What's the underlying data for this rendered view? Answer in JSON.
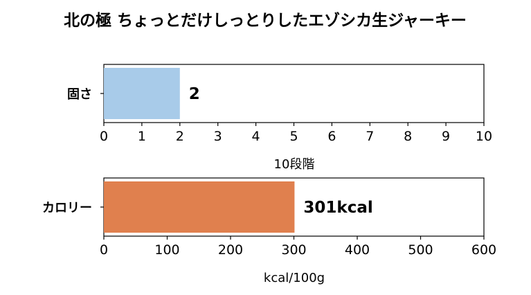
{
  "title": "北の極 ちょっとだけしっとりしたエゾシカ生ジャーキー",
  "chart_data": [
    {
      "type": "bar",
      "orientation": "horizontal",
      "categories": [
        "固さ"
      ],
      "values": [
        2
      ],
      "data_label": "2",
      "xlabel": "10段階",
      "xlim": [
        0,
        10
      ],
      "xticks": [
        "0",
        "1",
        "2",
        "3",
        "4",
        "5",
        "6",
        "7",
        "8",
        "9",
        "10"
      ],
      "color": "#a8cbe9"
    },
    {
      "type": "bar",
      "orientation": "horizontal",
      "categories": [
        "カロリー"
      ],
      "values": [
        301
      ],
      "data_label": "301kcal",
      "xlabel": "kcal/100g",
      "xlim": [
        0,
        600
      ],
      "xticks": [
        "0",
        "100",
        "200",
        "300",
        "400",
        "500",
        "600"
      ],
      "color": "#e0804e"
    }
  ]
}
